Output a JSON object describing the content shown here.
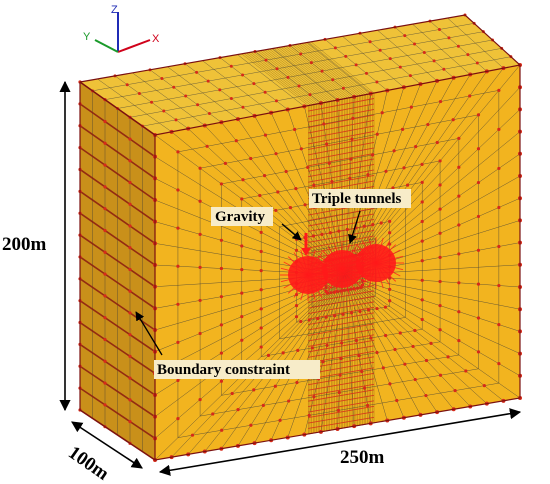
{
  "axes": {
    "x": {
      "label": "X",
      "color": "#d0021b"
    },
    "y": {
      "label": "Y",
      "color": "#1a9a2a"
    },
    "z": {
      "label": "Z",
      "color": "#1f2bb5"
    }
  },
  "dimensions": {
    "height": "200m",
    "depth": "100m",
    "width": "250m"
  },
  "annotations": {
    "gravity": "Gravity",
    "tunnels": "Triple tunnels",
    "boundary": "Boundary constraint"
  },
  "colors": {
    "face_front": "#f2b41f",
    "face_side": "#c9901a",
    "face_top": "#efc238",
    "mesh_line": "#3a3a3a",
    "node": "#d62a1a",
    "tunnel": "#ff1a1a"
  },
  "mesh": {
    "front_columns": 22,
    "front_rows": 15,
    "side_columns": 6,
    "top_rows": 6,
    "tunnel_count": 3
  }
}
